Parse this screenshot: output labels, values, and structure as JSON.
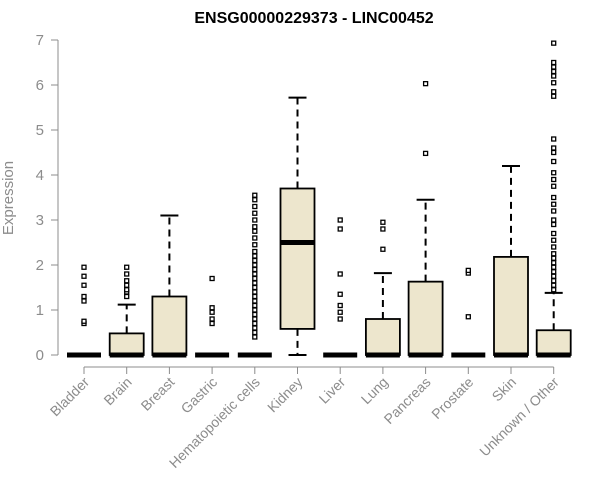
{
  "chart_data": {
    "type": "boxplot",
    "title": "ENSG00000229373 - LINC00452",
    "xlabel": "",
    "ylabel": "Expression",
    "ylim": [
      0,
      7
    ],
    "yticks": [
      0,
      1,
      2,
      3,
      4,
      5,
      6,
      7
    ],
    "grid": false,
    "legend": "none",
    "box_fill": "#ede6cd",
    "stroke_color": "#000000",
    "axis_color": "#8c8c8c",
    "categories": [
      "Bladder",
      "Brain",
      "Breast",
      "Gastric",
      "Hematopoietic cells",
      "Kidney",
      "Liver",
      "Lung",
      "Pancreas",
      "Prostate",
      "Skin",
      "Unknown / Other"
    ],
    "boxes": [
      {
        "name": "Bladder",
        "q1": 0,
        "median": 0,
        "q3": 0,
        "whisker_low": 0,
        "whisker_high": 0,
        "outliers": [
          0.7,
          0.75,
          1.2,
          1.3,
          1.55,
          1.75,
          1.95
        ]
      },
      {
        "name": "Brain",
        "q1": 0,
        "median": 0,
        "q3": 0.48,
        "whisker_low": 0,
        "whisker_high": 1.12,
        "outliers": [
          1.3,
          1.4,
          1.45,
          1.55,
          1.65,
          1.8,
          1.95
        ]
      },
      {
        "name": "Breast",
        "q1": 0,
        "median": 0,
        "q3": 1.3,
        "whisker_low": 0,
        "whisker_high": 3.1,
        "outliers": []
      },
      {
        "name": "Gastric",
        "q1": 0,
        "median": 0,
        "q3": 0,
        "whisker_low": 0,
        "whisker_high": 0,
        "outliers": [
          0.7,
          0.8,
          0.95,
          1.05,
          1.7
        ]
      },
      {
        "name": "Hematopoietic cells",
        "q1": 0,
        "median": 0,
        "q3": 0,
        "whisker_low": 0,
        "whisker_high": 0,
        "outliers": [
          0.4,
          0.5,
          0.6,
          0.7,
          0.8,
          0.9,
          1.0,
          1.1,
          1.2,
          1.3,
          1.4,
          1.5,
          1.6,
          1.7,
          1.8,
          1.9,
          2.0,
          2.1,
          2.2,
          2.3,
          2.45,
          2.6,
          2.75,
          2.85,
          3.0,
          3.15,
          3.3,
          3.45,
          3.55
        ]
      },
      {
        "name": "Kidney",
        "q1": 0.58,
        "median": 2.5,
        "q3": 3.7,
        "whisker_low": 0,
        "whisker_high": 5.72,
        "outliers": []
      },
      {
        "name": "Liver",
        "q1": 0,
        "median": 0,
        "q3": 0,
        "whisker_low": 0,
        "whisker_high": 0,
        "outliers": [
          0.8,
          0.95,
          1.1,
          1.35,
          1.8,
          2.8,
          3.0
        ]
      },
      {
        "name": "Lung",
        "q1": 0,
        "median": 0,
        "q3": 0.8,
        "whisker_low": 0,
        "whisker_high": 1.82,
        "outliers": [
          2.35,
          2.8,
          2.95
        ]
      },
      {
        "name": "Pancreas",
        "q1": 0,
        "median": 0,
        "q3": 1.63,
        "whisker_low": 0,
        "whisker_high": 3.45,
        "outliers": [
          4.48,
          6.03
        ]
      },
      {
        "name": "Prostate",
        "q1": 0,
        "median": 0,
        "q3": 0,
        "whisker_low": 0,
        "whisker_high": 0,
        "outliers": [
          0.85,
          1.82,
          1.88
        ]
      },
      {
        "name": "Skin",
        "q1": 0,
        "median": 0,
        "q3": 2.18,
        "whisker_low": 0,
        "whisker_high": 4.2,
        "outliers": []
      },
      {
        "name": "Unknown / Other",
        "q1": 0,
        "median": 0,
        "q3": 0.55,
        "whisker_low": 0,
        "whisker_high": 1.38,
        "outliers": [
          1.45,
          1.55,
          1.65,
          1.75,
          1.85,
          1.95,
          2.05,
          2.15,
          2.25,
          2.4,
          2.55,
          2.7,
          2.9,
          3.0,
          3.2,
          3.35,
          3.5,
          3.75,
          3.9,
          4.05,
          4.3,
          4.5,
          4.6,
          4.8,
          5.75,
          5.85,
          6.05,
          6.2,
          6.3,
          6.4,
          6.5,
          6.93
        ]
      }
    ]
  }
}
